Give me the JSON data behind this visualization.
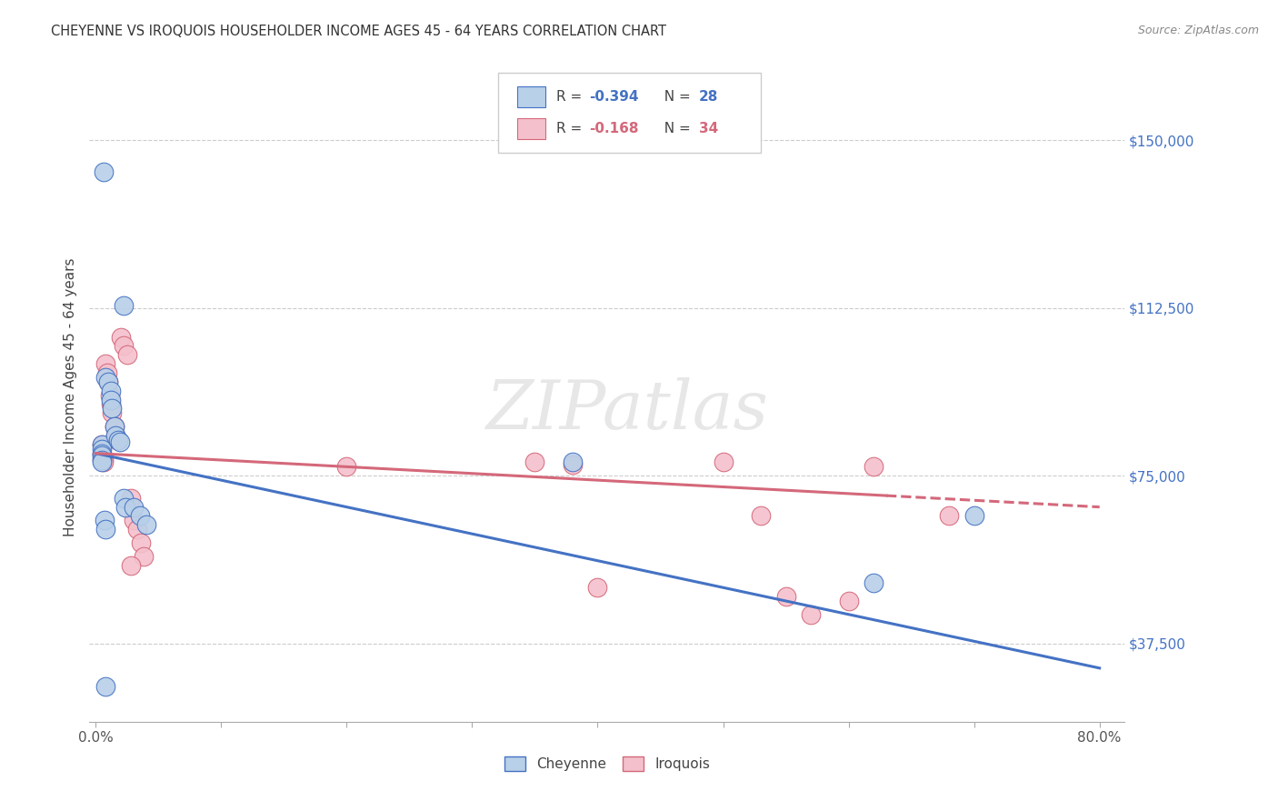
{
  "title": "CHEYENNE VS IROQUOIS HOUSEHOLDER INCOME AGES 45 - 64 YEARS CORRELATION CHART",
  "source": "Source: ZipAtlas.com",
  "ylabel": "Householder Income Ages 45 - 64 years",
  "xlim": [
    -0.005,
    0.82
  ],
  "ylim": [
    20000,
    165000
  ],
  "yticks": [
    37500,
    75000,
    112500,
    150000
  ],
  "ytick_labels": [
    "$37,500",
    "$75,000",
    "$112,500",
    "$150,000"
  ],
  "xtick_positions": [
    0.0,
    0.1,
    0.2,
    0.3,
    0.4,
    0.5,
    0.6,
    0.7,
    0.8
  ],
  "xtick_labels": [
    "0.0%",
    "",
    "",
    "",
    "",
    "",
    "",
    "",
    "80.0%"
  ],
  "cheyenne_label": "Cheyenne",
  "iroquois_label": "Iroquois",
  "blue_fill": "#b8d0e8",
  "blue_edge": "#4472c4",
  "pink_fill": "#f4c0cc",
  "pink_edge": "#d4687a",
  "watermark": "ZIPatlas",
  "cheyenne_x": [
    0.006,
    0.022,
    0.008,
    0.01,
    0.012,
    0.012,
    0.005,
    0.005,
    0.005,
    0.005,
    0.005,
    0.005,
    0.007,
    0.008,
    0.013,
    0.015,
    0.016,
    0.018,
    0.019,
    0.022,
    0.024,
    0.03,
    0.035,
    0.04,
    0.38,
    0.62,
    0.7,
    0.008
  ],
  "cheyenne_y": [
    143000,
    113000,
    97000,
    96000,
    94000,
    92000,
    82000,
    81000,
    80000,
    79500,
    78500,
    78000,
    65000,
    63000,
    90000,
    86000,
    84000,
    83000,
    82500,
    70000,
    68000,
    68000,
    66000,
    64000,
    78000,
    51000,
    66000,
    28000
  ],
  "iroquois_x": [
    0.005,
    0.005,
    0.005,
    0.006,
    0.006,
    0.008,
    0.009,
    0.01,
    0.011,
    0.012,
    0.013,
    0.015,
    0.016,
    0.017,
    0.02,
    0.022,
    0.025,
    0.028,
    0.03,
    0.033,
    0.036,
    0.038,
    0.2,
    0.35,
    0.38,
    0.5,
    0.53,
    0.57,
    0.62,
    0.68,
    0.028,
    0.4,
    0.55,
    0.6
  ],
  "iroquois_y": [
    82000,
    80000,
    79000,
    78500,
    78000,
    100000,
    98000,
    96000,
    93000,
    91000,
    89000,
    86000,
    84000,
    83000,
    106000,
    104000,
    102000,
    70000,
    65000,
    63000,
    60000,
    57000,
    77000,
    78000,
    77500,
    78000,
    66000,
    44000,
    77000,
    66000,
    55000,
    50000,
    48000,
    47000
  ]
}
